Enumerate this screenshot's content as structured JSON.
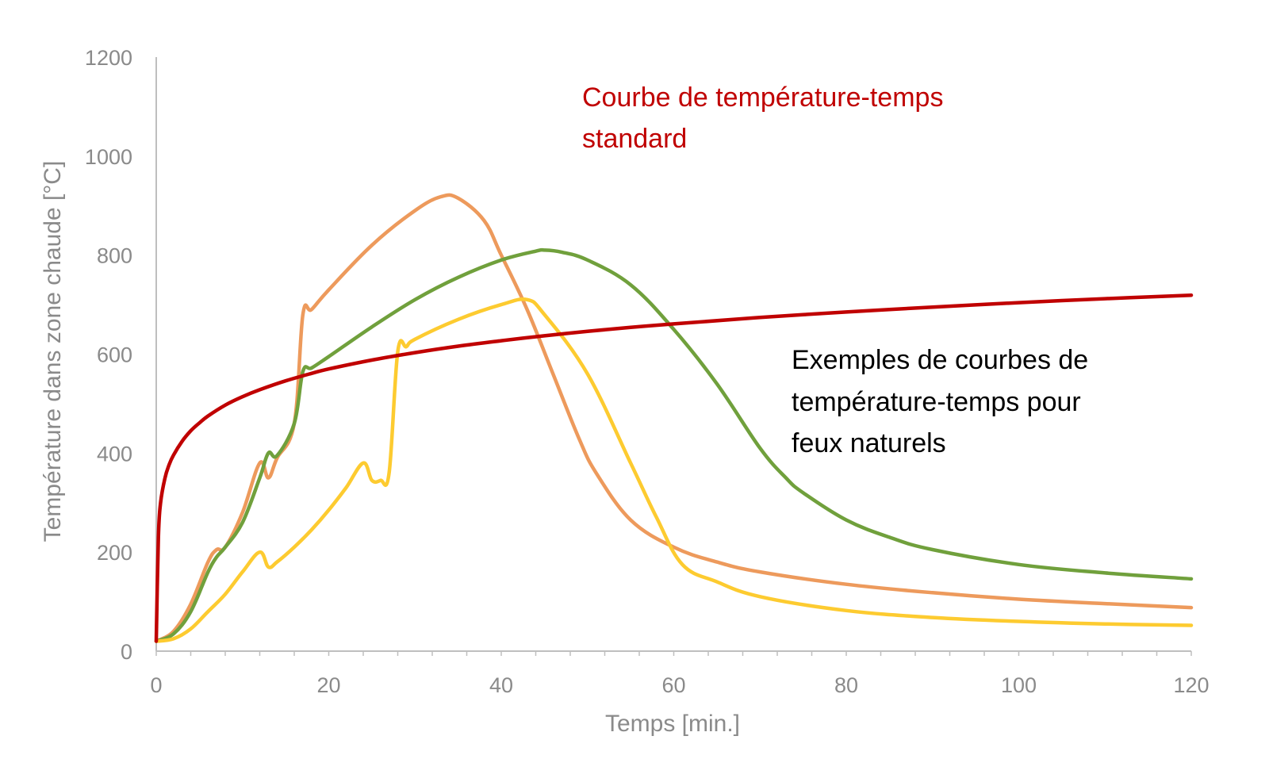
{
  "chart_data": {
    "type": "line",
    "title": "",
    "xlabel": "Temps [min.]",
    "ylabel": "Température dans zone chaude [°C]",
    "xlim": [
      0,
      120
    ],
    "ylim": [
      0,
      1200
    ],
    "x_ticks": [
      "0",
      "20",
      "40",
      "60",
      "80",
      "100",
      "120"
    ],
    "y_ticks": [
      "0",
      "200",
      "400",
      "600",
      "800",
      "1000",
      "1200"
    ],
    "grid": false,
    "annotations": {
      "standard": [
        "Courbe de température-temps",
        "standard"
      ],
      "natural": [
        "Exemples de courbes de",
        "température-temps pour",
        "feux naturels"
      ]
    },
    "series": [
      {
        "color": "#c00000",
        "x": [
          0,
          0.25,
          0.5,
          1,
          1.5,
          2,
          3,
          4,
          5,
          6,
          8,
          10,
          12,
          15,
          18,
          20,
          25,
          30,
          35,
          40,
          45,
          50,
          55,
          60,
          70,
          80,
          90,
          100,
          110,
          120
        ],
        "y": [
          20,
          230,
          299,
          349,
          377,
          396,
          424,
          445,
          461,
          475,
          497,
          514,
          528,
          546,
          561,
          570,
          588,
          603,
          616,
          627,
          637,
          646,
          654,
          661,
          674,
          685,
          695,
          704,
          712,
          719
        ]
      },
      {
        "color": "#ed9a5c",
        "x": [
          0,
          2,
          4,
          6,
          7,
          8,
          10,
          12,
          13,
          14,
          16,
          17,
          18,
          20,
          25,
          30,
          33,
          35,
          38,
          40,
          43,
          46,
          49,
          51,
          55,
          60,
          65,
          70,
          80,
          90,
          100,
          110,
          120
        ],
        "y": [
          20,
          40,
          95,
          180,
          205,
          210,
          280,
          380,
          350,
          390,
          460,
          680,
          690,
          730,
          820,
          890,
          918,
          915,
          870,
          800,
          690,
          560,
          430,
          360,
          265,
          210,
          180,
          160,
          135,
          118,
          105,
          96,
          88
        ]
      },
      {
        "color": "#70a03c",
        "x": [
          0,
          2,
          4,
          6,
          7,
          8,
          10,
          12,
          13,
          14,
          16,
          17,
          18,
          20,
          25,
          30,
          35,
          40,
          44,
          45,
          47,
          50,
          55,
          60,
          65,
          70,
          73,
          75,
          80,
          85,
          90,
          100,
          110,
          120
        ],
        "y": [
          20,
          35,
          80,
          160,
          190,
          210,
          260,
          350,
          400,
          395,
          460,
          565,
          572,
          595,
          655,
          710,
          755,
          790,
          808,
          810,
          806,
          790,
          740,
          650,
          540,
          410,
          350,
          320,
          265,
          230,
          205,
          175,
          158,
          146
        ]
      },
      {
        "color": "#fdcb30",
        "x": [
          0,
          2,
          4,
          6,
          8,
          10,
          12,
          13,
          14,
          16,
          18,
          20,
          22,
          24,
          25,
          26,
          27,
          28,
          29,
          30,
          35,
          40,
          43,
          45,
          50,
          55,
          58,
          61,
          65,
          70,
          80,
          90,
          100,
          110,
          120
        ],
        "y": [
          20,
          25,
          45,
          80,
          115,
          160,
          200,
          170,
          180,
          210,
          245,
          285,
          330,
          380,
          345,
          345,
          360,
          605,
          615,
          630,
          670,
          700,
          710,
          680,
          560,
          380,
          270,
          175,
          140,
          110,
          82,
          68,
          60,
          55,
          52
        ]
      }
    ]
  }
}
